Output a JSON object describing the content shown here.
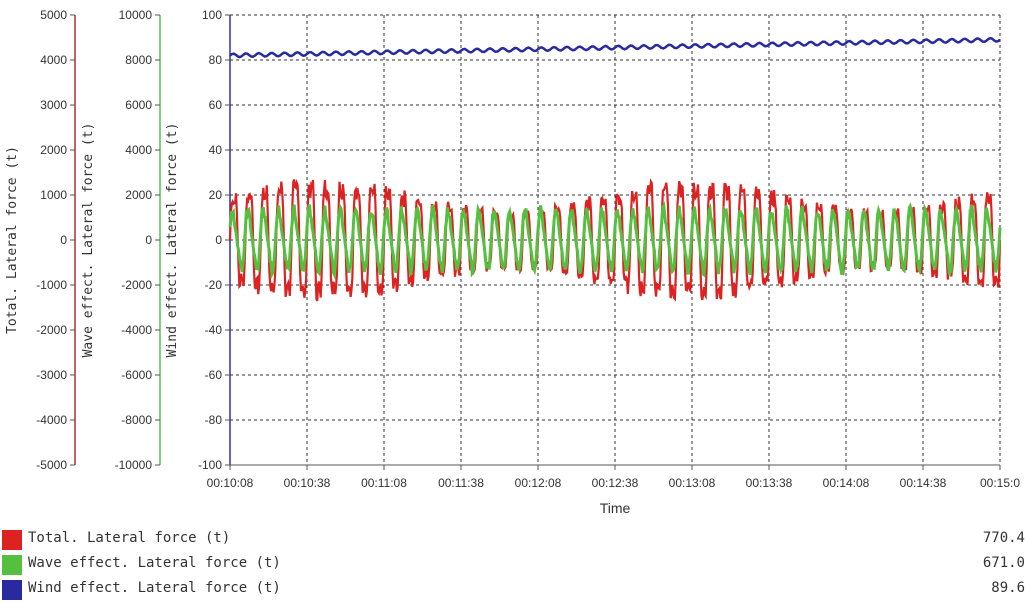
{
  "chart_data": {
    "type": "line",
    "xlabel": "Time",
    "x_ticks": [
      "00:10:08",
      "00:10:38",
      "00:11:08",
      "00:11:38",
      "00:12:08",
      "00:12:38",
      "00:13:08",
      "00:13:38",
      "00:14:08",
      "00:14:38",
      "00:15:0"
    ],
    "axes": [
      {
        "label": "Total. Lateral force (t)",
        "ylim": [
          -5000,
          5000
        ],
        "ticks": [
          5000,
          4000,
          3000,
          2000,
          1000,
          0,
          -1000,
          -2000,
          -3000,
          -4000,
          -5000
        ],
        "color": "#b03030"
      },
      {
        "label": "Wave effect. Lateral force (t)",
        "ylim": [
          -10000,
          10000
        ],
        "ticks": [
          10000,
          8000,
          6000,
          4000,
          2000,
          0,
          -2000,
          -4000,
          -6000,
          -8000,
          -10000
        ],
        "color": "#55c055"
      },
      {
        "label": "Wind effect. Lateral force (t)",
        "ylim": [
          -100,
          100
        ],
        "ticks": [
          100,
          80,
          60,
          40,
          20,
          0,
          -20,
          -40,
          -60,
          -80,
          -100
        ],
        "color": "#3030a0"
      }
    ],
    "series": [
      {
        "name": "Total. Lateral force (t)",
        "color": "#dd2222",
        "value_label": "770.4",
        "oscillation": {
          "mean": 0,
          "amplitude": 28,
          "period_s": 6
        }
      },
      {
        "name": "Wave effect. Lateral force (t)",
        "color": "#55c040",
        "value_label": "671.0",
        "oscillation": {
          "mean": 0,
          "amplitude": 13,
          "period_s": 6
        }
      },
      {
        "name": "Wind effect. Lateral force (t)",
        "color": "#2a2aa0",
        "value_label": "89.6",
        "trend": {
          "start": 82,
          "end": 89
        }
      }
    ],
    "grid": true
  }
}
